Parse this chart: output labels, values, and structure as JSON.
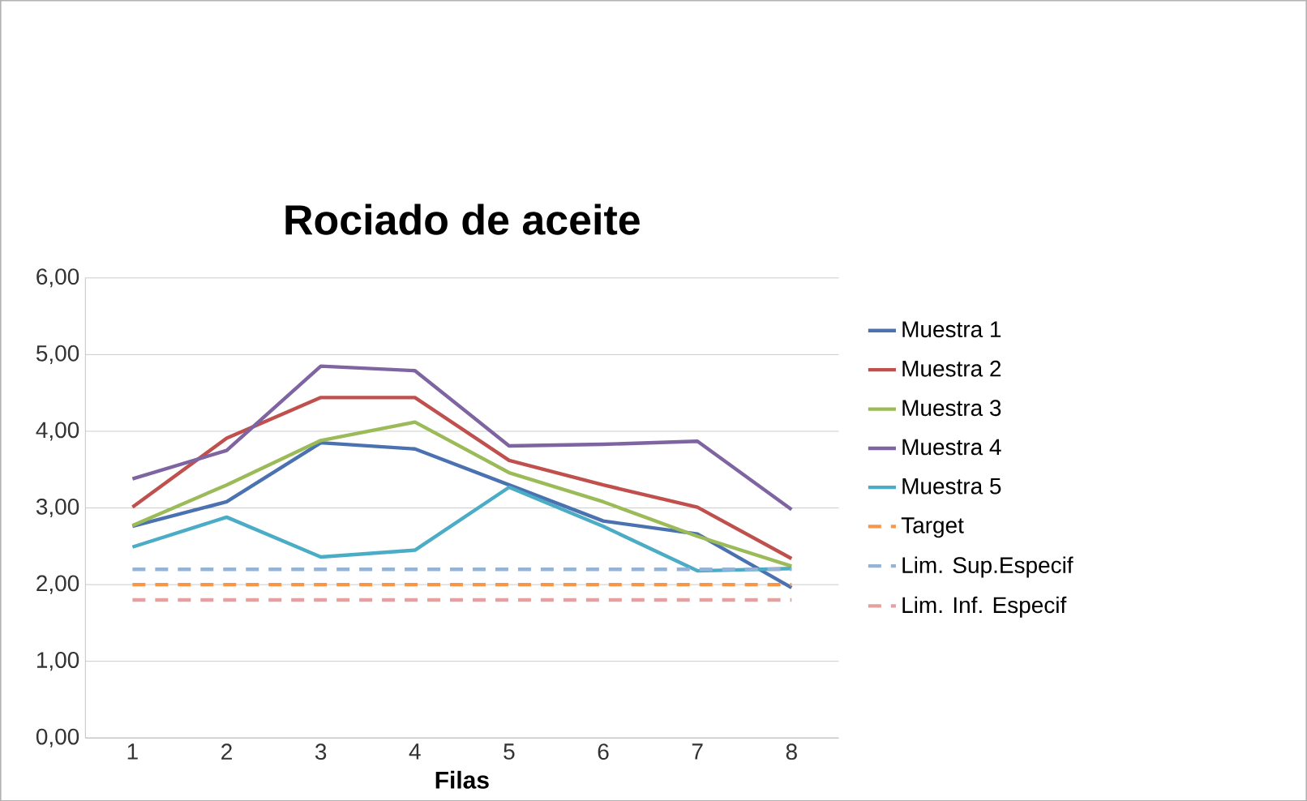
{
  "chart_data": {
    "type": "line",
    "title": "Rociado de aceite",
    "xlabel": "Filas",
    "categories": [
      "1",
      "2",
      "3",
      "4",
      "5",
      "6",
      "7",
      "8"
    ],
    "series": [
      {
        "name": "Muestra 1",
        "color": "#4a72b0",
        "values": [
          2.76,
          3.08,
          3.85,
          3.77,
          3.3,
          2.83,
          2.66,
          1.96
        ]
      },
      {
        "name": "Muestra 2",
        "color": "#c0504d",
        "values": [
          3.01,
          3.91,
          4.44,
          4.44,
          3.62,
          3.3,
          3.01,
          2.34
        ]
      },
      {
        "name": "Muestra 3",
        "color": "#9bbb59",
        "values": [
          2.77,
          3.3,
          3.88,
          4.12,
          3.46,
          3.08,
          2.63,
          2.24
        ]
      },
      {
        "name": "Muestra 4",
        "color": "#7f64a2",
        "values": [
          3.38,
          3.75,
          4.85,
          4.79,
          3.81,
          3.83,
          3.87,
          2.98
        ]
      },
      {
        "name": "Muestra 5",
        "color": "#4bacc6",
        "values": [
          2.49,
          2.88,
          2.36,
          2.45,
          3.27,
          2.76,
          2.18,
          2.21
        ]
      },
      {
        "name": "Target",
        "color": "#f79646",
        "line_style": "dashed",
        "values": [
          2.0,
          2.0,
          2.0,
          2.0,
          2.0,
          2.0,
          2.0,
          2.0
        ]
      },
      {
        "name": "Lim. Sup.Especif",
        "color": "#95b3d7",
        "line_style": "dashed",
        "values": [
          2.2,
          2.2,
          2.2,
          2.2,
          2.2,
          2.2,
          2.2,
          2.2
        ]
      },
      {
        "name": "Lim. Inf. Especif",
        "color": "#e6a0a0",
        "line_style": "dashed",
        "values": [
          1.8,
          1.8,
          1.8,
          1.8,
          1.8,
          1.8,
          1.8,
          1.8
        ]
      }
    ],
    "ylim": [
      0,
      6
    ],
    "yticks": [
      {
        "value": 0,
        "label": "0,00"
      },
      {
        "value": 1,
        "label": "1,00"
      },
      {
        "value": 2,
        "label": "2,00"
      },
      {
        "value": 3,
        "label": "3,00"
      },
      {
        "value": 4,
        "label": "4,00"
      },
      {
        "value": 5,
        "label": "5,00"
      },
      {
        "value": 6,
        "label": "6,00"
      }
    ],
    "grid": "y",
    "legend": "right",
    "line_style": "solid",
    "marker": "none"
  }
}
